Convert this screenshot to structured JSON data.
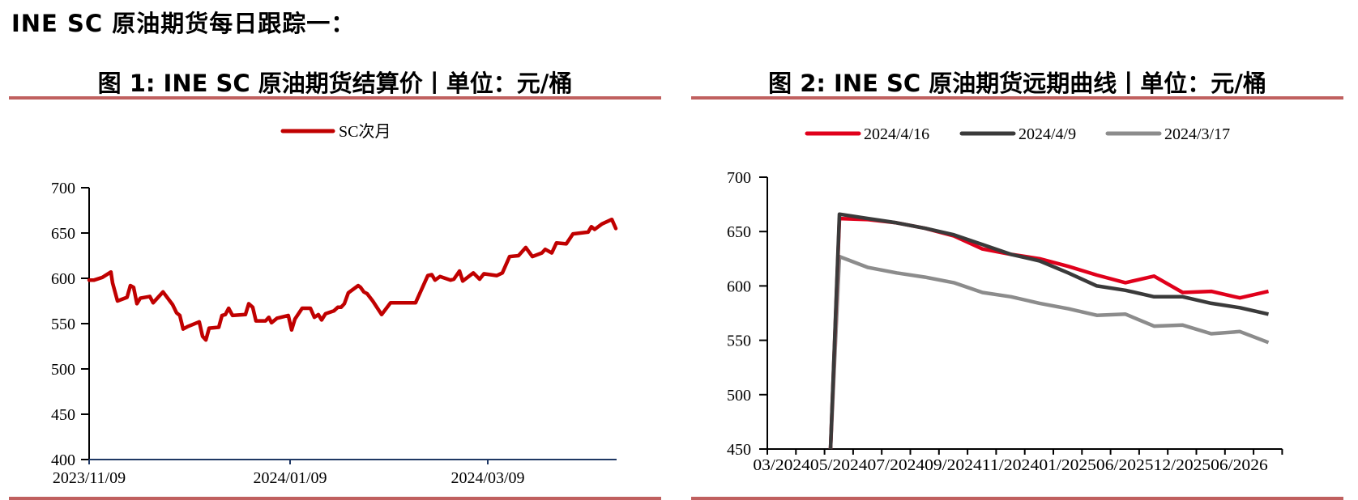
{
  "page": {
    "title": "INE SC 原油期货每日跟踪一：",
    "rule_color": "#c0605f"
  },
  "figures": [
    {
      "title": "图 1: INE SC 原油期货结算价丨单位：元/桶"
    },
    {
      "title": "图 2: INE SC 原油期货远期曲线丨单位：元/桶"
    }
  ],
  "chart_data": [
    {
      "type": "line",
      "title": "INE SC 原油期货结算价",
      "unit": "元/桶",
      "xlabel": "",
      "ylabel": "",
      "ylim": [
        400,
        700
      ],
      "yticks": [
        400,
        450,
        500,
        550,
        600,
        650,
        700
      ],
      "xticks": [
        "2023/11/09",
        "2024/01/09",
        "2024/03/09"
      ],
      "x_range": [
        "2023/11/09",
        "2024/04/16"
      ],
      "grid": false,
      "legend_position": "top",
      "series": [
        {
          "name": "SC次月",
          "color": "#c00000",
          "points_note": "[days since 2023/11/09, value]",
          "points": [
            [
              0,
              598
            ],
            [
              1.5,
              598
            ],
            [
              4,
              601
            ],
            [
              6.6,
              607
            ],
            [
              7.1,
              595
            ],
            [
              8.6,
              575
            ],
            [
              11.5,
              579
            ],
            [
              12.5,
              592
            ],
            [
              13.5,
              590
            ],
            [
              14.5,
              572
            ],
            [
              15.5,
              578
            ],
            [
              18.4,
              580
            ],
            [
              19.4,
              573
            ],
            [
              22.4,
              585
            ],
            [
              25.3,
              571
            ],
            [
              26.5,
              562
            ],
            [
              27.5,
              559
            ],
            [
              28.5,
              544
            ],
            [
              30,
              547
            ],
            [
              33.4,
              552
            ],
            [
              34.4,
              536
            ],
            [
              35.4,
              532
            ],
            [
              36.4,
              545
            ],
            [
              39.3,
              546
            ],
            [
              40.3,
              559
            ],
            [
              41.3,
              560
            ],
            [
              42.3,
              567
            ],
            [
              43.5,
              559
            ],
            [
              47.4,
              560
            ],
            [
              48.4,
              572
            ],
            [
              49.6,
              568
            ],
            [
              50.6,
              553
            ],
            [
              53.5,
              553
            ],
            [
              54.5,
              557
            ],
            [
              55.3,
              551
            ],
            [
              57,
              556
            ],
            [
              60.4,
              559
            ],
            [
              61.4,
              543
            ],
            [
              62.4,
              555
            ],
            [
              64.6,
              567
            ],
            [
              67.1,
              567
            ],
            [
              68.3,
              557
            ],
            [
              69.5,
              560
            ],
            [
              70.5,
              554
            ],
            [
              71.7,
              561
            ],
            [
              74.2,
              564
            ],
            [
              75.4,
              568
            ],
            [
              76.4,
              568
            ],
            [
              77.4,
              572
            ],
            [
              78.6,
              584
            ],
            [
              81.6,
              592
            ],
            [
              82.3,
              590
            ],
            [
              83.3,
              585
            ],
            [
              84.3,
              583
            ],
            [
              86,
              575
            ],
            [
              88.7,
              560
            ],
            [
              91.4,
              573
            ],
            [
              99,
              573
            ],
            [
              102.7,
              603
            ],
            [
              103.9,
              604
            ],
            [
              104.9,
              598
            ],
            [
              106.4,
              602
            ],
            [
              109.6,
              598
            ],
            [
              110.6,
              599
            ],
            [
              112.3,
              608
            ],
            [
              113.3,
              597
            ],
            [
              116.5,
              606
            ],
            [
              118.4,
              599
            ],
            [
              119.7,
              605
            ],
            [
              123.6,
              603
            ],
            [
              125.3,
              606
            ],
            [
              127.5,
              624
            ],
            [
              130.2,
              625
            ],
            [
              132.4,
              634
            ],
            [
              134.4,
              624
            ],
            [
              137.3,
              628
            ],
            [
              138.3,
              632
            ],
            [
              140.3,
              628
            ],
            [
              141.7,
              639
            ],
            [
              144.7,
              638
            ],
            [
              146.7,
              649
            ],
            [
              151.3,
              651
            ],
            [
              152.3,
              657
            ],
            [
              153.3,
              654
            ],
            [
              155.5,
              660
            ],
            [
              158.5,
              665
            ],
            [
              159.7,
              655
            ]
          ]
        }
      ]
    },
    {
      "type": "line",
      "title": "INE SC 原油期货远期曲线",
      "unit": "元/桶",
      "xlabel": "",
      "ylabel": "",
      "ylim": [
        450,
        700
      ],
      "yticks": [
        450,
        500,
        550,
        600,
        650,
        700
      ],
      "xtick_labels": [
        "03/2024",
        "05/2024",
        "07/2024",
        "09/2024",
        "11/2024",
        "01/2025",
        "06/2025",
        "12/2025",
        "06/2026"
      ],
      "tick_count": 18,
      "grid": false,
      "legend_position": "top",
      "contract_index_start": 2.2,
      "series": [
        {
          "name": "2024/4/16",
          "color": "#e0001b",
          "values": [
            662,
            661,
            658,
            653,
            646,
            634,
            629,
            625,
            618,
            610,
            603,
            609,
            594,
            595,
            589,
            595
          ]
        },
        {
          "name": "2024/4/9",
          "color": "#3a3a3a",
          "values": [
            666,
            662,
            658,
            653,
            647,
            638,
            629,
            623,
            612,
            600,
            596,
            590,
            590,
            584,
            580,
            574
          ]
        },
        {
          "name": "2024/3/17",
          "color": "#8c8c8c",
          "values": [
            627,
            617,
            612,
            608,
            603,
            594,
            590,
            584,
            579,
            573,
            574,
            563,
            564,
            556,
            558,
            548
          ]
        }
      ]
    }
  ]
}
